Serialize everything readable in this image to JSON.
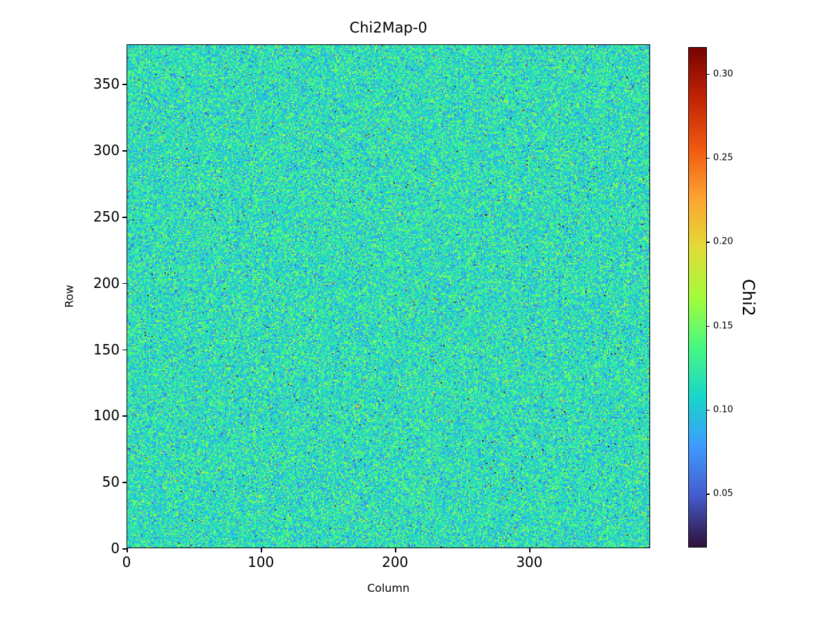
{
  "chart_data": {
    "type": "heatmap",
    "title": "Chi2Map-0",
    "xlabel": "Column",
    "ylabel": "Row",
    "x_range": [
      0,
      390
    ],
    "y_range": [
      0,
      380
    ],
    "x_ticks": [
      0,
      100,
      200,
      300
    ],
    "y_ticks": [
      0,
      50,
      100,
      150,
      200,
      250,
      300,
      350
    ],
    "grid": {
      "cols": 390,
      "rows": 380
    },
    "colormap": "turbo",
    "colorbar": {
      "label": "Chi2",
      "ticks": [
        0.05,
        0.1,
        0.15,
        0.2,
        0.25,
        0.3
      ],
      "tick_format_decimals": 2,
      "vmin": 0.018,
      "vmax": 0.316
    },
    "values_summary": {
      "distribution": "random noise, chi2-like, slight right skew with rare high outliers",
      "mean": 0.115,
      "std": 0.024,
      "outlier_high_fraction": 0.002,
      "outlier_low_fraction": 0.001
    },
    "seed": 1337,
    "legend": "none",
    "grid_lines": "off"
  }
}
